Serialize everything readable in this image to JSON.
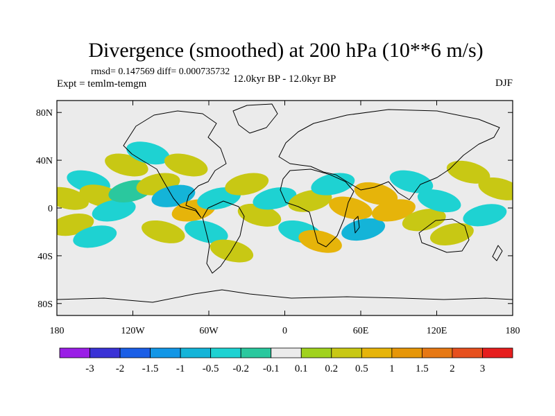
{
  "chart_data": {
    "type": "heatmap",
    "title": "Divergence (smoothed) at 200 hPa (10**6 m/s)",
    "stats": "rmsd= 0.147569 diff= 0.000735732",
    "experiment": "Expt = temlm-temgm",
    "subtitle": "12.0kyr BP - 12.0kyr BP",
    "season": "DJF",
    "projection": "cylindrical equidistant",
    "xlim": [
      -180,
      180
    ],
    "ylim": [
      -90,
      90
    ],
    "x_ticks": [
      {
        "value": -180,
        "label": "180"
      },
      {
        "value": -120,
        "label": "120W"
      },
      {
        "value": -60,
        "label": "60W"
      },
      {
        "value": 0,
        "label": "0"
      },
      {
        "value": 60,
        "label": "60E"
      },
      {
        "value": 120,
        "label": "120E"
      },
      {
        "value": 180,
        "label": "180"
      }
    ],
    "y_ticks": [
      {
        "value": 80,
        "label": "80N"
      },
      {
        "value": 40,
        "label": "40N"
      },
      {
        "value": 0,
        "label": "0"
      },
      {
        "value": -40,
        "label": "40S"
      },
      {
        "value": -80,
        "label": "80S"
      }
    ],
    "colorbar": {
      "colors": [
        "#9a1ee6",
        "#3a32d6",
        "#1a5ee6",
        "#1296e6",
        "#14b4d8",
        "#1ed2d2",
        "#2ac89e",
        "#ebebeb",
        "#a0d21e",
        "#c8c814",
        "#e6b40a",
        "#e69608",
        "#e67814",
        "#e6501e",
        "#e61e1e"
      ],
      "labels": [
        "-3",
        "-2",
        "-1.5",
        "-1",
        "-0.5",
        "-0.2",
        "-0.1",
        "0.1",
        "0.2",
        "0.5",
        "1",
        "1.5",
        "2",
        "3"
      ]
    },
    "anomaly_regions": [
      {
        "lon": -172,
        "lat": 8,
        "value": 0.2
      },
      {
        "lon": -168,
        "lat": -14,
        "value": 0.3
      },
      {
        "lon": -155,
        "lat": 22,
        "value": -0.4
      },
      {
        "lon": -150,
        "lat": -24,
        "value": -0.5
      },
      {
        "lon": -145,
        "lat": 10,
        "value": 0.3
      },
      {
        "lon": -135,
        "lat": -2,
        "value": -0.3
      },
      {
        "lon": -125,
        "lat": 36,
        "value": 0.4
      },
      {
        "lon": -122,
        "lat": 14,
        "value": -0.2
      },
      {
        "lon": -108,
        "lat": 46,
        "value": -0.3
      },
      {
        "lon": -100,
        "lat": 20,
        "value": 0.3
      },
      {
        "lon": -96,
        "lat": -20,
        "value": 0.4
      },
      {
        "lon": -88,
        "lat": 10,
        "value": -0.6
      },
      {
        "lon": -78,
        "lat": 36,
        "value": 0.2
      },
      {
        "lon": -72,
        "lat": -2,
        "value": 0.5
      },
      {
        "lon": -62,
        "lat": -20,
        "value": -0.5
      },
      {
        "lon": -52,
        "lat": 8,
        "value": -0.3
      },
      {
        "lon": -42,
        "lat": -36,
        "value": 0.4
      },
      {
        "lon": -30,
        "lat": 20,
        "value": 0.3
      },
      {
        "lon": -20,
        "lat": -6,
        "value": 0.2
      },
      {
        "lon": -8,
        "lat": 8,
        "value": -0.4
      },
      {
        "lon": 12,
        "lat": -20,
        "value": -0.3
      },
      {
        "lon": 20,
        "lat": 6,
        "value": 0.3
      },
      {
        "lon": 28,
        "lat": -28,
        "value": 0.6
      },
      {
        "lon": 38,
        "lat": 20,
        "value": -0.5
      },
      {
        "lon": 52,
        "lat": 0,
        "value": 0.8
      },
      {
        "lon": 62,
        "lat": -18,
        "value": -0.6
      },
      {
        "lon": 72,
        "lat": 12,
        "value": 0.5
      },
      {
        "lon": 86,
        "lat": -2,
        "value": 0.7
      },
      {
        "lon": 100,
        "lat": 22,
        "value": -0.3
      },
      {
        "lon": 110,
        "lat": -10,
        "value": 0.4
      },
      {
        "lon": 122,
        "lat": 6,
        "value": -0.5
      },
      {
        "lon": 132,
        "lat": -22,
        "value": 0.3
      },
      {
        "lon": 145,
        "lat": 30,
        "value": 0.2
      },
      {
        "lon": 158,
        "lat": -6,
        "value": -0.4
      },
      {
        "lon": 170,
        "lat": 16,
        "value": 0.3
      }
    ]
  }
}
